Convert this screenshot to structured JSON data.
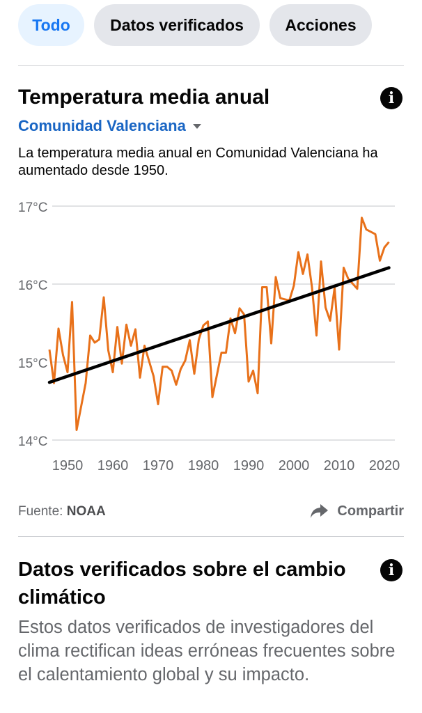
{
  "tabs": [
    {
      "label": "Todo",
      "active": true
    },
    {
      "label": "Datos verificados",
      "active": false
    },
    {
      "label": "Acciones",
      "active": false
    }
  ],
  "card": {
    "title": "Temperatura media anual",
    "info_icon": "info-icon",
    "region": "Comunidad Valenciana",
    "description": "La temperatura media anual en Comunidad Valenciana ha aumentado desde 1950.",
    "source_label": "Fuente:",
    "source_name": "NOAA",
    "share_label": "Compartir",
    "share_icon": "share-arrow-icon"
  },
  "chart_data": {
    "type": "line",
    "title": "",
    "xlabel": "",
    "ylabel": "",
    "x_ticks": [
      "1950",
      "1960",
      "1970",
      "1980",
      "1990",
      "2000",
      "2010",
      "2020"
    ],
    "y_ticks": [
      "17°C",
      "16°C",
      "15°C",
      "14°C"
    ],
    "ylim": [
      14,
      17
    ],
    "xlim": [
      1946,
      2021
    ],
    "grid": true,
    "colors": {
      "series": "#e8711a",
      "trend": "#000000",
      "grid": "#cfd1d4"
    },
    "series": [
      {
        "x": [
          1946,
          1947,
          1948,
          1949,
          1950,
          1951,
          1952,
          1954,
          1955,
          1956,
          1957,
          1958,
          1959,
          1960,
          1961,
          1962,
          1963,
          1964,
          1965,
          1966,
          1967,
          1969,
          1970,
          1971,
          1972,
          1973,
          1974,
          1975,
          1976,
          1977,
          1978,
          1979,
          1980,
          1981,
          1982,
          1984,
          1985,
          1986,
          1987,
          1988,
          1989,
          1990,
          1991,
          1992,
          1993,
          1994,
          1995,
          1996,
          1997,
          1999,
          2000,
          2001,
          2002,
          2003,
          2004,
          2005,
          2006,
          2007,
          2008,
          2009,
          2010,
          2011,
          2012,
          2014,
          2015,
          2016,
          2017,
          2018,
          2019,
          2020,
          2021
        ],
        "y": [
          15.16,
          14.73,
          15.43,
          15.09,
          14.87,
          15.77,
          14.13,
          14.73,
          15.34,
          15.25,
          15.29,
          15.83,
          15.15,
          14.87,
          15.45,
          14.98,
          15.48,
          15.21,
          15.42,
          14.8,
          15.21,
          14.82,
          14.46,
          14.94,
          14.94,
          14.89,
          14.71,
          14.91,
          15.02,
          15.28,
          14.85,
          15.29,
          15.47,
          15.52,
          14.55,
          15.12,
          15.12,
          15.56,
          15.37,
          15.69,
          15.61,
          14.75,
          14.89,
          14.6,
          15.96,
          15.96,
          15.24,
          16.09,
          15.82,
          15.79,
          15.98,
          16.41,
          16.13,
          16.38,
          15.96,
          15.34,
          16.29,
          15.7,
          15.53,
          15.95,
          15.16,
          16.21,
          16.07,
          15.94,
          16.85,
          16.7,
          16.67,
          16.64,
          16.3,
          16.47,
          16.54
        ]
      }
    ],
    "trend": {
      "x": [
        1946,
        2021
      ],
      "y": [
        14.74,
        16.21
      ]
    }
  },
  "section": {
    "title": "Datos verificados sobre el cambio climático",
    "info_icon": "info-icon",
    "body": "Estos datos verificados de investigadores del clima rectifican ideas erróneas frecuentes sobre el calentamiento global y su impacto."
  }
}
